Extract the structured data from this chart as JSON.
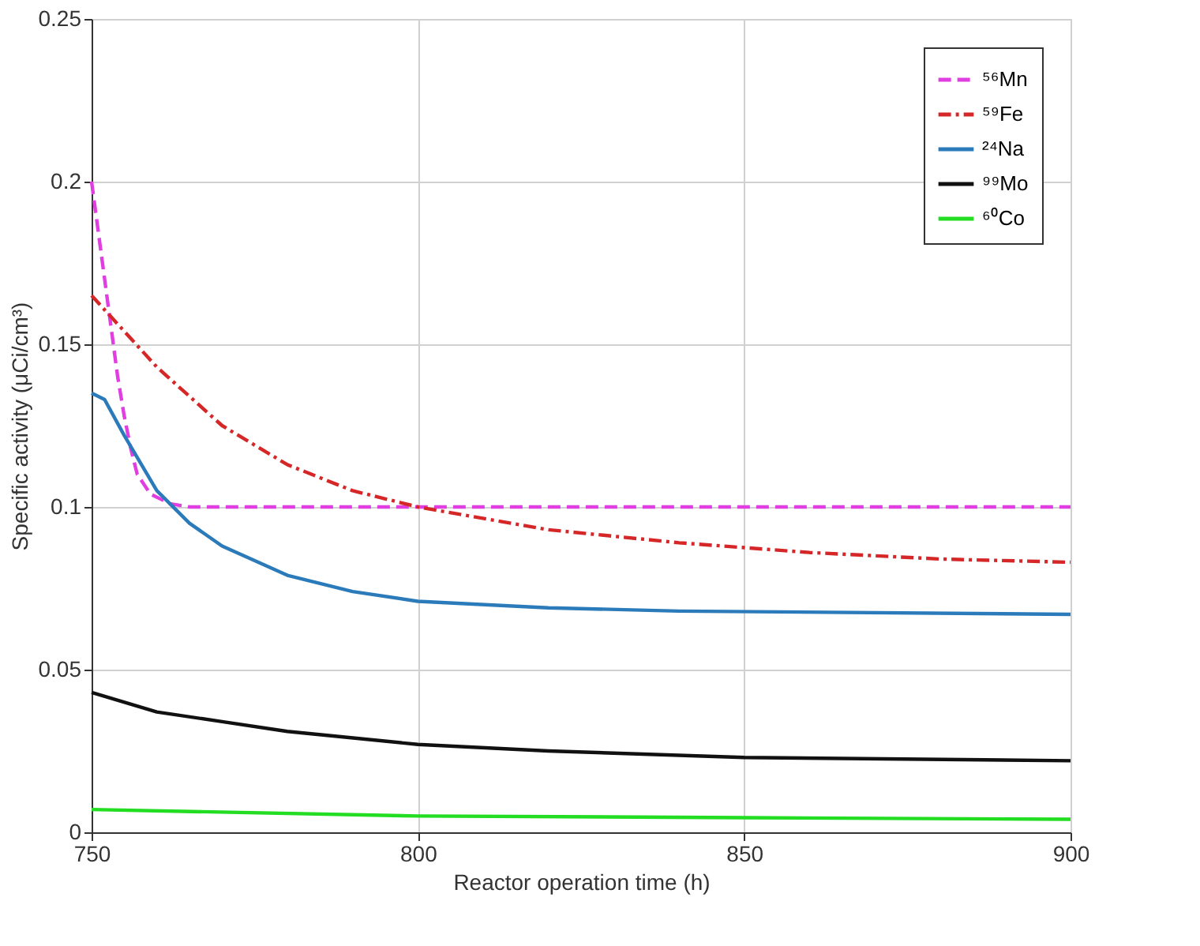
{
  "chart_data": {
    "type": "line",
    "xlabel": "Reactor operation time (h)",
    "ylabel": "Specific activity (μCi/cm³)",
    "xlim": [
      750,
      900
    ],
    "xticks": [
      750,
      800,
      850,
      900
    ],
    "ylim": [
      0,
      0.25
    ],
    "yticks": [
      0,
      0.05,
      0.1,
      0.15,
      0.2,
      0.25
    ],
    "grid": true,
    "legend": "top right",
    "marker": "none",
    "series": [
      {
        "name": "⁵⁶Mn",
        "color": "#e03ee0",
        "line_style": "dashed",
        "x": [
          750,
          751,
          752,
          753,
          754,
          755,
          756,
          757,
          759,
          762,
          765,
          800,
          850,
          900
        ],
        "values": [
          0.2,
          0.185,
          0.17,
          0.155,
          0.14,
          0.128,
          0.118,
          0.11,
          0.104,
          0.101,
          0.1,
          0.1,
          0.1,
          0.1
        ]
      },
      {
        "name": "⁵⁹Fe",
        "color": "#d62728",
        "line_style": "dashdot",
        "x": [
          750,
          760,
          770,
          780,
          790,
          800,
          820,
          840,
          860,
          880,
          900
        ],
        "values": [
          0.165,
          0.143,
          0.125,
          0.113,
          0.105,
          0.1,
          0.093,
          0.089,
          0.086,
          0.084,
          0.083
        ]
      },
      {
        "name": "²⁴Na",
        "color": "#2b7bba",
        "line_style": "solid",
        "x": [
          750,
          752,
          755,
          760,
          765,
          770,
          780,
          790,
          800,
          820,
          840,
          900
        ],
        "values": [
          0.135,
          0.133,
          0.122,
          0.105,
          0.095,
          0.088,
          0.079,
          0.074,
          0.071,
          0.069,
          0.068,
          0.067
        ]
      },
      {
        "name": "⁹⁹Mo",
        "color": "#111111",
        "line_style": "solid",
        "x": [
          750,
          760,
          770,
          780,
          800,
          820,
          850,
          900
        ],
        "values": [
          0.043,
          0.037,
          0.034,
          0.031,
          0.027,
          0.025,
          0.023,
          0.022
        ]
      },
      {
        "name": "⁶⁰Co",
        "color": "#22dd22",
        "line_style": "solid",
        "x": [
          750,
          800,
          850,
          900
        ],
        "values": [
          0.007,
          0.005,
          0.0045,
          0.004
        ]
      }
    ]
  }
}
